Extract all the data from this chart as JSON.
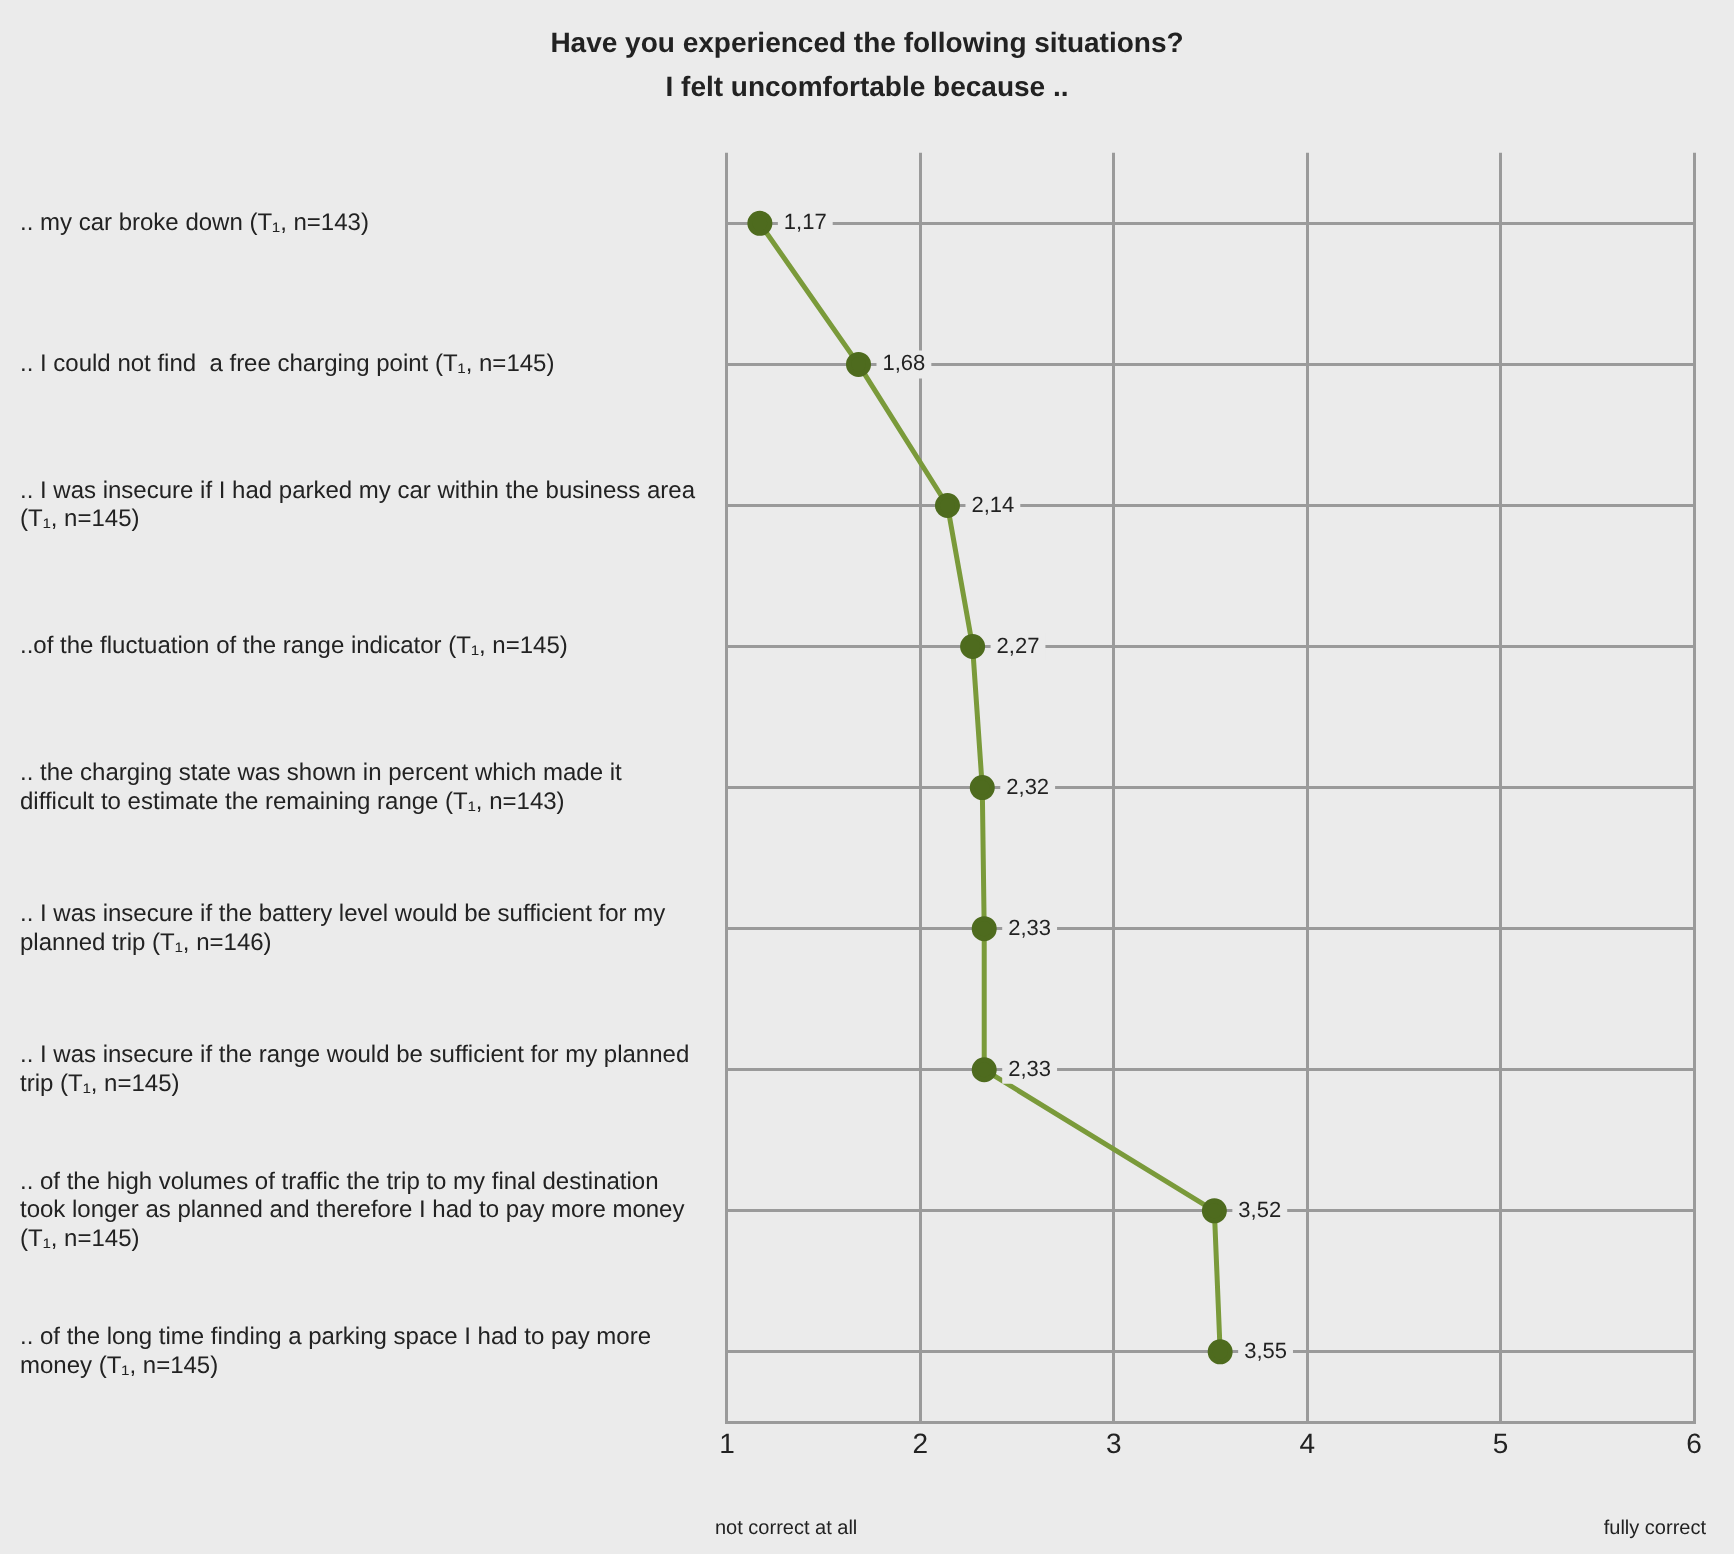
{
  "chart_data": {
    "type": "line",
    "orientation": "horizontal",
    "title": "Have you experienced the following situations?",
    "subtitle": "I felt uncomfortable because ..",
    "categories": [
      ".. my car broke down (T₁, n=143)",
      ".. I could not find  a free charging point (T₁, n=145)",
      ".. I was insecure if I had parked my car within the business area (T₁, n=145)",
      "..of the fluctuation of the range indicator (T₁, n=145)",
      ".. the charging state was shown in percent which made it difficult to estimate the remaining range (T₁, n=143)",
      ".. I was insecure if the battery level would be sufficient for my planned trip (T₁, n=146)",
      ".. I was insecure if the range would be sufficient for my planned trip (T₁, n=145)",
      ".. of the high volumes of traffic the trip to my final destination took longer as planned and therefore I had to pay more money (T₁, n=145)",
      ".. of the long time finding a parking space I had to pay more money (T₁, n=145)"
    ],
    "series": [
      {
        "color": "#7a9a3a",
        "values": [
          1.17,
          1.68,
          2.14,
          2.27,
          2.32,
          2.33,
          2.33,
          3.52,
          3.55
        ],
        "value_labels": [
          "1,17",
          "1,68",
          "2,14",
          "2,27",
          "2,32",
          "2,33",
          "2,33",
          "3,52",
          "3,55"
        ]
      }
    ],
    "marker": "circle",
    "xlim": [
      1,
      6
    ],
    "xticks": [
      1,
      2,
      3,
      4,
      5,
      6
    ],
    "grid": true,
    "legend": false,
    "annotations": [
      "not correct at all",
      "fully correct"
    ]
  }
}
